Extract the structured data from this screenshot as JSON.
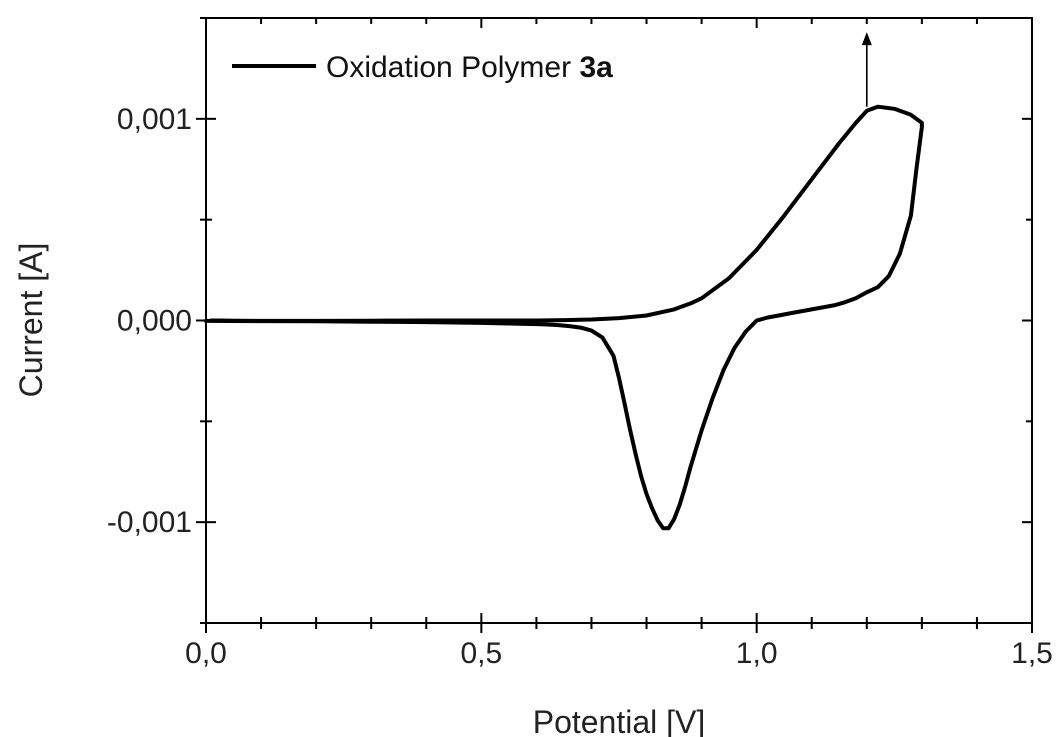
{
  "chart_data": {
    "type": "line",
    "xlabel": "Potential [V]",
    "ylabel": "Current [A]",
    "xlim": [
      0.0,
      1.5
    ],
    "ylim": [
      -0.0015,
      0.0015
    ],
    "x_ticks": [
      {
        "value": 0.0,
        "label": "0,0"
      },
      {
        "value": 0.5,
        "label": "0,5"
      },
      {
        "value": 1.0,
        "label": "1,0"
      },
      {
        "value": 1.5,
        "label": "1,5"
      }
    ],
    "y_ticks": [
      {
        "value": -0.001,
        "label": "-0,001"
      },
      {
        "value": 0.0,
        "label": "0,000"
      },
      {
        "value": 0.001,
        "label": "0,001"
      }
    ],
    "legend": {
      "placement": "top-left",
      "label_prefix": "Oxidation Polymer ",
      "label_bold": "3a"
    },
    "arrow_annotation": {
      "x": 1.2,
      "y_from": 0.00106,
      "y_to": 0.00143
    },
    "series": [
      {
        "name": "Oxidation Polymer 3a",
        "color": "#000000",
        "x": [
          0.01,
          0.1,
          0.2,
          0.3,
          0.4,
          0.5,
          0.6,
          0.65,
          0.7,
          0.75,
          0.8,
          0.85,
          0.88,
          0.9,
          0.95,
          1.0,
          1.05,
          1.1,
          1.15,
          1.18,
          1.2,
          1.22,
          1.25,
          1.28,
          1.3,
          1.3,
          1.29,
          1.28,
          1.26,
          1.24,
          1.22,
          1.2,
          1.18,
          1.16,
          1.14,
          1.12,
          1.1,
          1.08,
          1.06,
          1.04,
          1.02,
          1.0,
          0.98,
          0.96,
          0.94,
          0.92,
          0.9,
          0.88,
          0.87,
          0.86,
          0.85,
          0.84,
          0.83,
          0.82,
          0.81,
          0.8,
          0.79,
          0.78,
          0.77,
          0.76,
          0.75,
          0.74,
          0.72,
          0.7,
          0.68,
          0.66,
          0.64,
          0.62,
          0.6,
          0.55,
          0.5,
          0.45,
          0.4,
          0.3,
          0.2,
          0.1,
          0.0
        ],
        "y": [
          0.0,
          -2e-06,
          -2e-06,
          -1e-06,
          0.0,
          0.0,
          0.0,
          2e-06,
          5e-06,
          1.2e-05,
          2.5e-05,
          5.5e-05,
          8.5e-05,
          0.00011,
          0.00021,
          0.00035,
          0.00052,
          0.0007,
          0.00088,
          0.00098,
          0.00104,
          0.00106,
          0.00105,
          0.00102,
          0.00098,
          0.00096,
          0.00075,
          0.00052,
          0.00033,
          0.00022,
          0.000165,
          0.00014,
          0.00011,
          9e-05,
          7.5e-05,
          6.5e-05,
          5.5e-05,
          4.5e-05,
          3.5e-05,
          2.5e-05,
          1.5e-05,
          0.0,
          -5.5e-05,
          -0.000135,
          -0.000245,
          -0.000385,
          -0.000545,
          -0.000725,
          -0.000825,
          -0.000915,
          -0.000985,
          -0.00103,
          -0.00103,
          -0.00099,
          -0.00093,
          -0.00086,
          -0.00077,
          -0.00066,
          -0.00054,
          -0.00041,
          -0.000285,
          -0.000175,
          -8.5e-05,
          -5e-05,
          -3.5e-05,
          -2.8e-05,
          -2.3e-05,
          -2e-05,
          -1.8e-05,
          -1.5e-05,
          -1.2e-05,
          -1e-05,
          -8e-06,
          -6e-06,
          -4e-06,
          -3e-06,
          -2e-06
        ]
      }
    ]
  }
}
